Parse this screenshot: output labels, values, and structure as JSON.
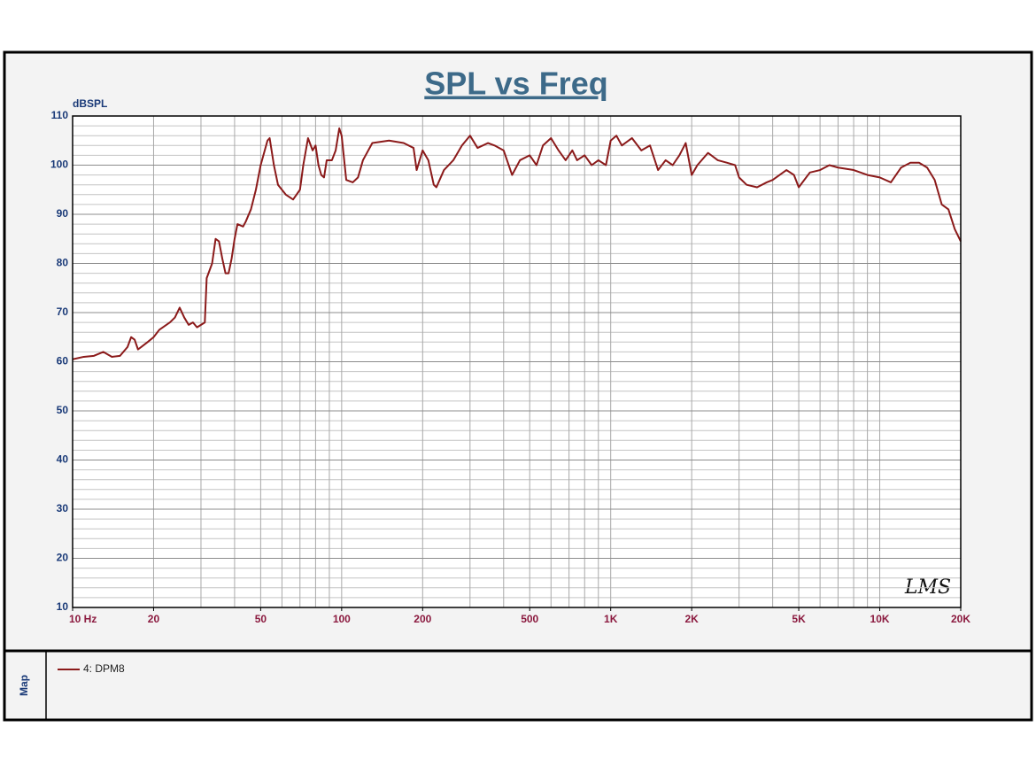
{
  "chart_data": {
    "type": "line",
    "title": "SPL vs Freq",
    "y_label": "dBSPL",
    "panel_label": "Map",
    "watermark": "LMS",
    "log_x": true,
    "grid": true,
    "xlim": [
      10,
      20000
    ],
    "ylim": [
      10,
      110
    ],
    "xticks": [
      {
        "value": 10,
        "label": "10  Hz"
      },
      20,
      50,
      100,
      200,
      500,
      {
        "value": 1000,
        "label": "1K"
      },
      {
        "value": 2000,
        "label": "2K"
      },
      {
        "value": 5000,
        "label": "5K"
      },
      {
        "value": 10000,
        "label": "10K"
      },
      {
        "value": 20000,
        "label": "20K"
      }
    ],
    "yticks": [
      10,
      20,
      30,
      40,
      50,
      60,
      70,
      80,
      90,
      100,
      110
    ],
    "xgrid": [
      20,
      30,
      40,
      50,
      60,
      70,
      80,
      90,
      100,
      200,
      300,
      400,
      500,
      600,
      700,
      800,
      900,
      1000,
      2000,
      3000,
      4000,
      5000,
      6000,
      7000,
      8000,
      9000,
      10000
    ],
    "ygrid": [
      12,
      14,
      16,
      18,
      20,
      22,
      24,
      26,
      28,
      30,
      32,
      34,
      36,
      38,
      40,
      42,
      44,
      46,
      48,
      50,
      52,
      54,
      56,
      58,
      60,
      62,
      64,
      66,
      68,
      70,
      72,
      74,
      76,
      78,
      80,
      82,
      84,
      86,
      88,
      90,
      92,
      94,
      96,
      98,
      100,
      102,
      104,
      106,
      108
    ],
    "x": [
      10,
      11,
      12,
      13,
      14,
      15,
      16,
      16.5,
      17,
      17.5,
      18,
      19,
      20,
      21,
      23,
      24,
      25,
      26,
      27,
      28,
      29,
      30,
      31,
      31.5,
      33,
      34,
      35,
      36,
      37,
      38,
      39,
      40,
      41,
      43,
      44,
      46,
      48,
      50,
      53,
      54,
      56,
      58,
      62,
      66,
      70,
      72,
      75,
      78,
      80,
      82,
      84,
      86,
      88,
      92,
      95,
      98,
      100,
      104,
      110,
      115,
      120,
      130,
      150,
      170,
      185,
      190,
      200,
      210,
      220,
      225,
      240,
      260,
      280,
      300,
      320,
      350,
      370,
      400,
      430,
      460,
      500,
      530,
      560,
      600,
      640,
      680,
      720,
      750,
      800,
      850,
      900,
      960,
      1000,
      1050,
      1100,
      1200,
      1300,
      1400,
      1500,
      1600,
      1700,
      1800,
      1900,
      2000,
      2100,
      2300,
      2500,
      2700,
      2900,
      3000,
      3200,
      3500,
      3800,
      4000,
      4500,
      4800,
      5000,
      5500,
      6000,
      6500,
      7000,
      8000,
      9000,
      10000,
      11000,
      12000,
      13000,
      14000,
      15000,
      16000,
      17000,
      18000,
      19000,
      20000
    ],
    "series": [
      {
        "name": "4: DPM8",
        "color": "#8b1a1a",
        "values": [
          60.5,
          61,
          61.2,
          62,
          61,
          61.2,
          63,
          65,
          64.5,
          62.5,
          63,
          64,
          65,
          66.5,
          68,
          69,
          71,
          69,
          67.5,
          68,
          67,
          67.5,
          68,
          77,
          80,
          85,
          84.5,
          81,
          78,
          78,
          81,
          85,
          88,
          87.5,
          88.5,
          91,
          95,
          100,
          105,
          105.5,
          100,
          96,
          94,
          93,
          95,
          100,
          105.5,
          103,
          104,
          100,
          98,
          97.5,
          101,
          101,
          103,
          107.5,
          106,
          97,
          96.5,
          97.5,
          101,
          104.5,
          105,
          104.5,
          103.5,
          99,
          103,
          101,
          96,
          95.5,
          99,
          101,
          104,
          106,
          103.5,
          104.5,
          104,
          103,
          98,
          101,
          102,
          100,
          104,
          105.5,
          103,
          101,
          103,
          101,
          102,
          100,
          101,
          100,
          105,
          106,
          104,
          105.5,
          103,
          104,
          99,
          101,
          100,
          102,
          104.5,
          98,
          100,
          102.5,
          101,
          100.5,
          100,
          97.5,
          96,
          95.5,
          96.5,
          97,
          99,
          98,
          95.5,
          98.5,
          99,
          100,
          99.5,
          99,
          98,
          97.5,
          96.5,
          99.5,
          100.5,
          100.5,
          99.5,
          97,
          92,
          91,
          87,
          84.5
        ]
      }
    ]
  }
}
